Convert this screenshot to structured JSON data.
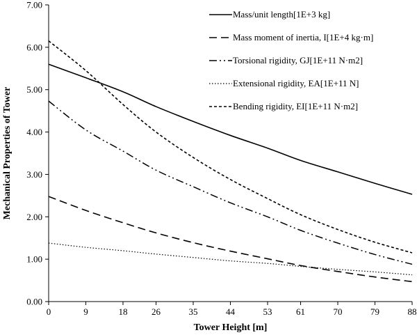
{
  "chart_data": {
    "type": "line",
    "xlabel": "Tower Height [m]",
    "ylabel": "Mechanical Properties of Tower",
    "xlim": [
      0,
      88
    ],
    "ylim": [
      0,
      7
    ],
    "x_ticks": [
      "0",
      "9",
      "18",
      "26",
      "35",
      "44",
      "53",
      "61",
      "70",
      "79",
      "88"
    ],
    "y_ticks": [
      "0.00",
      "1.00",
      "2.00",
      "3.00",
      "4.00",
      "5.00",
      "6.00",
      "7.00"
    ],
    "grid": false,
    "legend_position": "top-right",
    "x": [
      0,
      9,
      18,
      26,
      35,
      44,
      53,
      61,
      70,
      79,
      88
    ],
    "series": [
      {
        "name": "Mass/unit length[1E+3 kg]",
        "style": "solid",
        "values": [
          5.6,
          5.28,
          4.95,
          4.6,
          4.25,
          3.92,
          3.62,
          3.33,
          3.06,
          2.79,
          2.53
        ]
      },
      {
        "name": "Mass moment of inertia, I[1E+4 kg·m]",
        "style": "longdash",
        "values": [
          2.48,
          2.15,
          1.86,
          1.62,
          1.39,
          1.19,
          1.01,
          0.85,
          0.71,
          0.58,
          0.47
        ]
      },
      {
        "name": "Torsional rigidity, GJ[1E+11 N·m2]",
        "style": "dashdotdot",
        "values": [
          4.73,
          4.05,
          3.55,
          3.1,
          2.71,
          2.33,
          2.0,
          1.68,
          1.38,
          1.11,
          0.88
        ]
      },
      {
        "name": "Extensional rigidity, EA[1E+11 N]",
        "style": "dotted",
        "values": [
          1.38,
          1.28,
          1.2,
          1.12,
          1.04,
          0.96,
          0.9,
          0.83,
          0.76,
          0.7,
          0.63
        ]
      },
      {
        "name": "Bending rigidity, EI[1E+11 N·m2]",
        "style": "shortdash",
        "values": [
          6.15,
          5.45,
          4.65,
          4.0,
          3.4,
          2.88,
          2.43,
          2.05,
          1.7,
          1.4,
          1.15
        ]
      }
    ],
    "colors": {
      "line": "#000000",
      "axis": "#000000",
      "background": "#ffffff"
    }
  }
}
